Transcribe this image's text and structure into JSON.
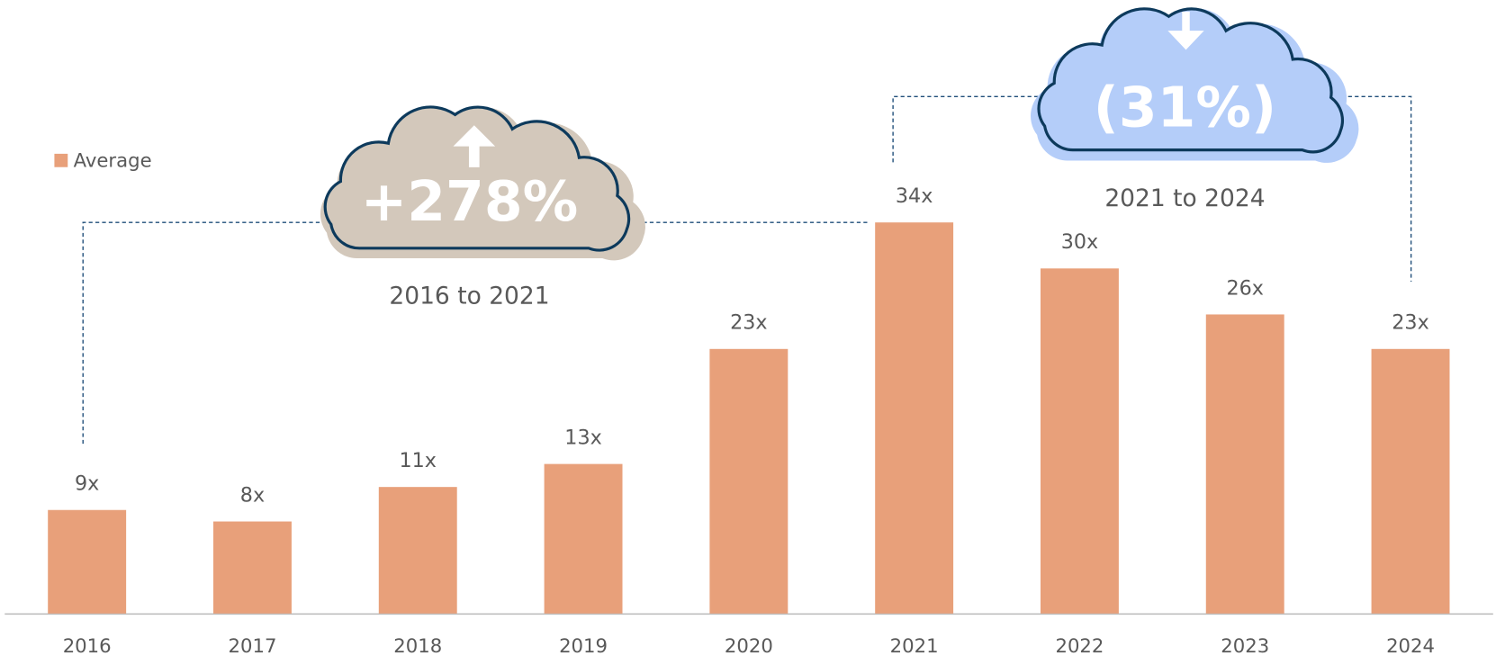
{
  "chart_data": {
    "type": "bar",
    "categories": [
      "2016",
      "2017",
      "2018",
      "2019",
      "2020",
      "2021",
      "2022",
      "2023",
      "2024"
    ],
    "series": [
      {
        "name": "Average",
        "color": "#e8a07a",
        "values": [
          9,
          8,
          11,
          13,
          23,
          34,
          30,
          26,
          23
        ],
        "value_labels": [
          "9x",
          "8x",
          "11x",
          "13x",
          "23x",
          "34x",
          "30x",
          "26x",
          "23x"
        ]
      }
    ],
    "annotations": [
      {
        "label": "+278%",
        "caption": "2016 to 2021"
      },
      {
        "label": "(31%)",
        "caption": "2021 to 2024"
      }
    ],
    "grid": false
  }
}
